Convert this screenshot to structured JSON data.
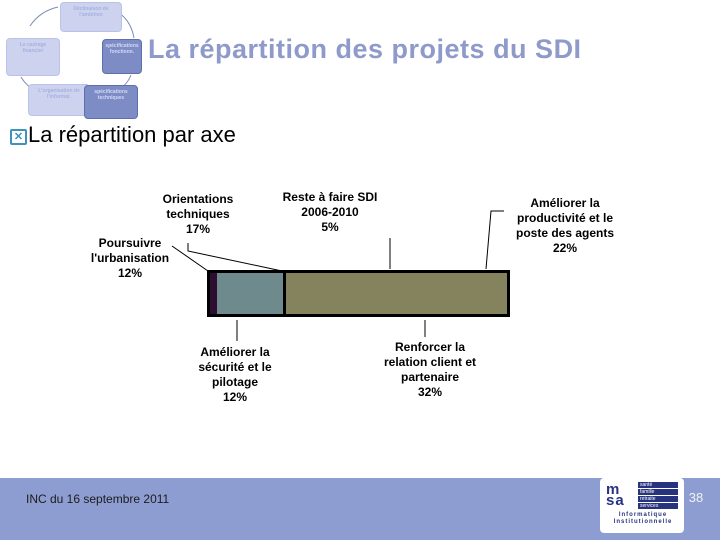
{
  "slide": {
    "title": "La répartition des projets du SDI",
    "heading": "La répartition par axe"
  },
  "diagram": {
    "boxes": [
      {
        "label": "Déclinaison de l'ambition",
        "style": "light"
      },
      {
        "label": "Le cadrage financier",
        "style": "light"
      },
      {
        "label": "spécifications fonctionn.",
        "style": "dark"
      },
      {
        "label": "L'organisation de l'informat.",
        "style": "light"
      },
      {
        "label": "spécifications techniques",
        "style": "dark"
      }
    ]
  },
  "chart_data": {
    "type": "bar",
    "variant": "horizontal-stacked-100pct",
    "title": "",
    "categories": [
      "Poursuivre l'urbanisation",
      "Orientations techniques",
      "Reste à faire SDI 2006-2010",
      "Améliorer la productivité et le poste des agents",
      "Améliorer la sécurité et le pilotage",
      "Renforcer la relation client et partenaire"
    ],
    "values": [
      12,
      17,
      5,
      22,
      12,
      32
    ],
    "unit": "%",
    "legend": "none",
    "grid": false,
    "visual_segments": [
      {
        "name": "dark-purple",
        "color": "#2e0d33",
        "width_pct": 2.3,
        "bordered": false
      },
      {
        "name": "teal",
        "color": "#6e8a8c",
        "width_pct": 22.2,
        "bordered": false
      },
      {
        "name": "khaki",
        "color": "#85825e",
        "width_pct": 75.5,
        "bordered": true
      }
    ]
  },
  "callouts": {
    "orientations": {
      "text": "Orientations\ntechniques",
      "pct": "17%"
    },
    "reste": {
      "text": "Reste à faire SDI\n2006-2010",
      "pct": "5%"
    },
    "productivite": {
      "text": "Améliorer la\nproductivité et le\nposte des agents",
      "pct": "22%"
    },
    "urbanisation": {
      "text": "Poursuivre\nl'urbanisation",
      "pct": "12%"
    },
    "securite": {
      "text": "Améliorer la\nsécurité et le\npilotage",
      "pct": "12%"
    },
    "relation": {
      "text": "Renforcer la\nrelation client et\npartenaire",
      "pct": "32%"
    }
  },
  "footer": {
    "left_text": "INC du 16 septembre 2011",
    "page_number": "38"
  },
  "logo": {
    "wordmark_line1": "m",
    "wordmark_line2": "sa",
    "services": [
      "santé",
      "famille",
      "retraite",
      "services"
    ],
    "caption": "Informatique\nInstitutionnelle"
  },
  "colors": {
    "title": "#8e9aca",
    "footer_band": "#8d9dd1",
    "bullet_glyph": "#3e93ba",
    "bar_border": "#000000",
    "logo_navy": "#27337f"
  }
}
